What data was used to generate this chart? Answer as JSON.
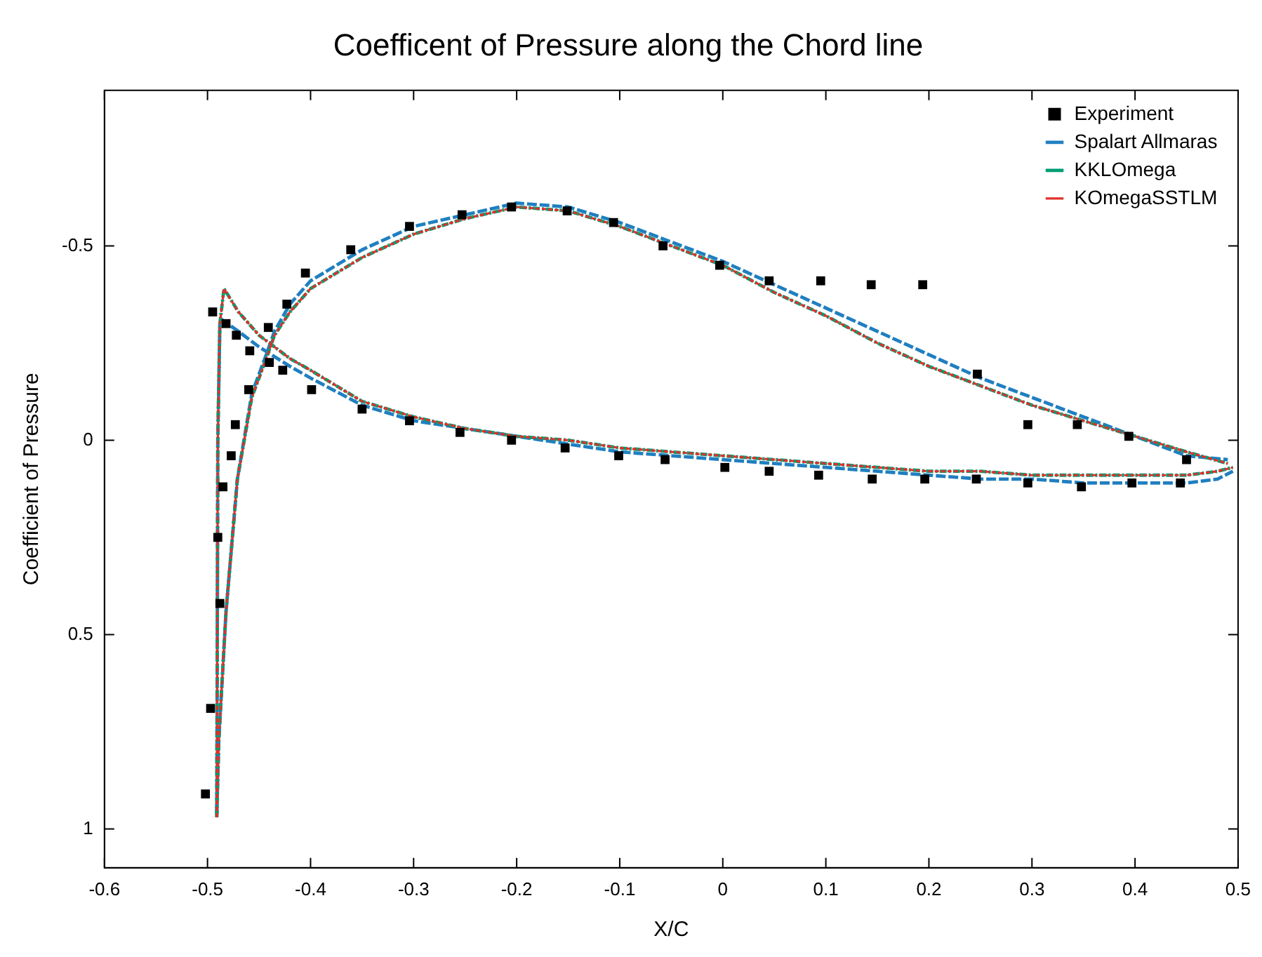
{
  "chart_data": {
    "type": "line",
    "title": "Coefficent of Pressure along the Chord line",
    "xlabel": "X/C",
    "ylabel": "Coefficient of Pressure",
    "xlim": [
      -0.6,
      0.5
    ],
    "xticks": [
      -0.6,
      -0.5,
      -0.4,
      -0.3,
      -0.2,
      -0.1,
      0,
      0.1,
      0.2,
      0.3,
      0.4,
      0.5
    ],
    "ylim": [
      1.1,
      -0.9
    ],
    "yticks": [
      1,
      0.5,
      0,
      -0.5
    ],
    "legend": "top right",
    "series": [
      {
        "name": "Experiment",
        "type": "scatter",
        "marker": "square",
        "color": "#000000",
        "x": [
          -0.502,
          -0.497,
          -0.495,
          -0.49,
          -0.488,
          -0.485,
          -0.482,
          -0.477,
          -0.473,
          -0.472,
          -0.46,
          -0.459,
          -0.441,
          -0.44,
          -0.427,
          -0.423,
          -0.405,
          -0.399,
          -0.361,
          -0.35,
          -0.304,
          -0.304,
          -0.253,
          -0.255,
          -0.205,
          -0.205,
          -0.151,
          -0.153,
          -0.106,
          -0.101,
          -0.058,
          -0.056,
          -0.003,
          0.002,
          0.045,
          0.045,
          0.095,
          0.093,
          0.144,
          0.145,
          0.194,
          0.196,
          0.247,
          0.246,
          0.296,
          0.296,
          0.344,
          0.348,
          0.394,
          0.397,
          0.45,
          0.444
        ],
        "values": [
          0.91,
          0.69,
          -0.33,
          0.25,
          0.42,
          0.12,
          -0.3,
          0.04,
          -0.04,
          -0.27,
          -0.13,
          -0.23,
          -0.29,
          -0.2,
          -0.18,
          -0.35,
          -0.43,
          -0.13,
          -0.49,
          -0.08,
          -0.55,
          -0.05,
          -0.58,
          -0.02,
          -0.6,
          0,
          -0.59,
          0.02,
          -0.56,
          0.04,
          -0.5,
          0.05,
          -0.45,
          0.07,
          -0.41,
          0.08,
          -0.41,
          0.09,
          -0.4,
          0.1,
          -0.4,
          0.1,
          -0.17,
          0.1,
          -0.04,
          0.11,
          -0.04,
          0.12,
          -0.01,
          0.11,
          0.05,
          0.11
        ]
      },
      {
        "name": "Spalart Allmaras",
        "type": "line",
        "marker": "none",
        "line_style": "dashed",
        "color": "#1f7fc0",
        "x": [
          -0.491,
          -0.489,
          -0.482,
          -0.471,
          -0.457,
          -0.443,
          -0.435,
          -0.42,
          -0.4,
          -0.35,
          -0.3,
          -0.25,
          -0.2,
          -0.15,
          -0.1,
          -0.05,
          0,
          0.05,
          0.1,
          0.15,
          0.2,
          0.25,
          0.3,
          0.35,
          0.4,
          0.45,
          0.49
        ],
        "values": [
          0.96,
          0.77,
          0.44,
          0.1,
          -0.12,
          -0.22,
          -0.28,
          -0.35,
          -0.41,
          -0.49,
          -0.55,
          -0.58,
          -0.61,
          -0.6,
          -0.56,
          -0.51,
          -0.46,
          -0.4,
          -0.34,
          -0.28,
          -0.22,
          -0.16,
          -0.11,
          -0.06,
          -0.01,
          0.04,
          0.05
        ]
      },
      {
        "type": "line",
        "marker": "none",
        "line_style": "dashed",
        "color": "#1f7fc0",
        "x": [
          -0.491,
          -0.4905,
          -0.49,
          -0.488,
          -0.486,
          -0.47,
          -0.45,
          -0.42,
          -0.4,
          -0.35,
          -0.3,
          -0.25,
          -0.2,
          -0.15,
          -0.1,
          -0.05,
          0,
          0.05,
          0.1,
          0.15,
          0.2,
          0.25,
          0.3,
          0.35,
          0.4,
          0.45,
          0.48,
          0.495
        ],
        "values": [
          0.96,
          0.5,
          0,
          -0.3,
          -0.31,
          -0.28,
          -0.24,
          -0.19,
          -0.16,
          -0.09,
          -0.05,
          -0.03,
          -0.01,
          0.01,
          0.03,
          0.04,
          0.05,
          0.06,
          0.07,
          0.08,
          0.09,
          0.1,
          0.1,
          0.11,
          0.11,
          0.11,
          0.1,
          0.08
        ]
      },
      {
        "name": "KKLOmega",
        "type": "line",
        "marker": "none",
        "line_style": "dashdot",
        "color": "#009e73",
        "x": [
          -0.491,
          -0.489,
          -0.482,
          -0.471,
          -0.457,
          -0.443,
          -0.435,
          -0.42,
          -0.4,
          -0.35,
          -0.3,
          -0.25,
          -0.2,
          -0.15,
          -0.1,
          -0.05,
          0,
          0.05,
          0.1,
          0.15,
          0.2,
          0.25,
          0.3,
          0.35,
          0.4,
          0.45,
          0.49
        ],
        "values": [
          0.97,
          0.77,
          0.44,
          0.1,
          -0.11,
          -0.21,
          -0.27,
          -0.33,
          -0.39,
          -0.47,
          -0.53,
          -0.57,
          -0.6,
          -0.59,
          -0.55,
          -0.5,
          -0.45,
          -0.38,
          -0.32,
          -0.25,
          -0.19,
          -0.14,
          -0.09,
          -0.05,
          -0.01,
          0.03,
          0.06
        ]
      },
      {
        "type": "line",
        "marker": "none",
        "line_style": "dashdot",
        "color": "#009e73",
        "x": [
          -0.491,
          -0.4905,
          -0.49,
          -0.488,
          -0.484,
          -0.47,
          -0.45,
          -0.42,
          -0.4,
          -0.35,
          -0.3,
          -0.25,
          -0.2,
          -0.15,
          -0.1,
          -0.05,
          0,
          0.05,
          0.1,
          0.15,
          0.2,
          0.25,
          0.3,
          0.35,
          0.4,
          0.45,
          0.48,
          0.495
        ],
        "values": [
          0.97,
          0.5,
          0,
          -0.3,
          -0.39,
          -0.33,
          -0.27,
          -0.21,
          -0.18,
          -0.1,
          -0.06,
          -0.03,
          -0.01,
          0,
          0.02,
          0.03,
          0.04,
          0.05,
          0.06,
          0.07,
          0.08,
          0.08,
          0.09,
          0.09,
          0.09,
          0.09,
          0.08,
          0.07
        ]
      },
      {
        "name": "KOmegaSSTLM",
        "type": "line",
        "marker": "none",
        "line_style": "dotted",
        "color": "#e0302a",
        "x": [
          -0.491,
          -0.489,
          -0.482,
          -0.471,
          -0.457,
          -0.443,
          -0.435,
          -0.42,
          -0.4,
          -0.35,
          -0.3,
          -0.25,
          -0.2,
          -0.15,
          -0.1,
          -0.05,
          0,
          0.05,
          0.1,
          0.15,
          0.2,
          0.25,
          0.3,
          0.35,
          0.4,
          0.45,
          0.49
        ],
        "values": [
          0.97,
          0.77,
          0.44,
          0.1,
          -0.11,
          -0.21,
          -0.27,
          -0.33,
          -0.39,
          -0.47,
          -0.53,
          -0.57,
          -0.6,
          -0.59,
          -0.55,
          -0.5,
          -0.45,
          -0.38,
          -0.32,
          -0.25,
          -0.19,
          -0.14,
          -0.09,
          -0.05,
          -0.01,
          0.03,
          0.06
        ]
      },
      {
        "type": "line",
        "marker": "none",
        "line_style": "dotted",
        "color": "#e0302a",
        "x": [
          -0.491,
          -0.4905,
          -0.49,
          -0.488,
          -0.484,
          -0.47,
          -0.45,
          -0.42,
          -0.4,
          -0.35,
          -0.3,
          -0.25,
          -0.2,
          -0.15,
          -0.1,
          -0.05,
          0,
          0.05,
          0.1,
          0.15,
          0.2,
          0.25,
          0.3,
          0.35,
          0.4,
          0.45,
          0.48,
          0.495
        ],
        "values": [
          0.97,
          0.5,
          0,
          -0.3,
          -0.39,
          -0.33,
          -0.27,
          -0.21,
          -0.18,
          -0.1,
          -0.06,
          -0.03,
          -0.01,
          0,
          0.02,
          0.03,
          0.04,
          0.05,
          0.06,
          0.07,
          0.08,
          0.08,
          0.09,
          0.09,
          0.09,
          0.09,
          0.08,
          0.07
        ]
      }
    ]
  }
}
